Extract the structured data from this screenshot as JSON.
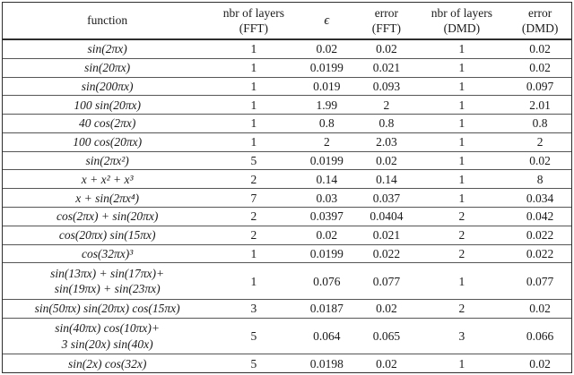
{
  "table": {
    "headers": [
      {
        "line1": "function",
        "line2": ""
      },
      {
        "line1": "nbr of layers",
        "line2": "(FFT)"
      },
      {
        "line1": "ϵ",
        "line2": ""
      },
      {
        "line1": "error",
        "line2": "(FFT)"
      },
      {
        "line1": "nbr of layers",
        "line2": "(DMD)"
      },
      {
        "line1": "error",
        "line2": "(DMD)"
      }
    ],
    "rows": [
      {
        "function": "sin(2πx)",
        "layers_fft": "1",
        "epsilon": "0.02",
        "error_fft": "0.02",
        "layers_dmd": "1",
        "error_dmd": "0.02"
      },
      {
        "function": "sin(20πx)",
        "layers_fft": "1",
        "epsilon": "0.0199",
        "error_fft": "0.021",
        "layers_dmd": "1",
        "error_dmd": "0.02"
      },
      {
        "function": "sin(200πx)",
        "layers_fft": "1",
        "epsilon": "0.019",
        "error_fft": "0.093",
        "layers_dmd": "1",
        "error_dmd": "0.097"
      },
      {
        "function": "100 sin(20πx)",
        "layers_fft": "1",
        "epsilon": "1.99",
        "error_fft": "2",
        "layers_dmd": "1",
        "error_dmd": "2.01"
      },
      {
        "function": "40 cos(2πx)",
        "layers_fft": "1",
        "epsilon": "0.8",
        "error_fft": "0.8",
        "layers_dmd": "1",
        "error_dmd": "0.8"
      },
      {
        "function": "100 cos(20πx)",
        "layers_fft": "1",
        "epsilon": "2",
        "error_fft": "2.03",
        "layers_dmd": "1",
        "error_dmd": "2"
      },
      {
        "function": "sin(2πx²)",
        "layers_fft": "5",
        "epsilon": "0.0199",
        "error_fft": "0.02",
        "layers_dmd": "1",
        "error_dmd": "0.02"
      },
      {
        "function": "x + x² + x³",
        "layers_fft": "2",
        "epsilon": "0.14",
        "error_fft": "0.14",
        "layers_dmd": "1",
        "error_dmd": "8"
      },
      {
        "function": "x + sin(2πx⁴)",
        "layers_fft": "7",
        "epsilon": "0.03",
        "error_fft": "0.037",
        "layers_dmd": "1",
        "error_dmd": "0.034"
      },
      {
        "function": "cos(2πx) + sin(20πx)",
        "layers_fft": "2",
        "epsilon": "0.0397",
        "error_fft": "0.0404",
        "layers_dmd": "2",
        "error_dmd": "0.042"
      },
      {
        "function": "cos(20πx) sin(15πx)",
        "layers_fft": "2",
        "epsilon": "0.02",
        "error_fft": "0.021",
        "layers_dmd": "2",
        "error_dmd": "0.022"
      },
      {
        "function": "cos(32πx)³",
        "layers_fft": "1",
        "epsilon": "0.0199",
        "error_fft": "0.022",
        "layers_dmd": "2",
        "error_dmd": "0.022"
      },
      {
        "function": "sin(13πx) + sin(17πx)+\nsin(19πx) + sin(23πx)",
        "layers_fft": "1",
        "epsilon": "0.076",
        "error_fft": "0.077",
        "layers_dmd": "1",
        "error_dmd": "0.077"
      },
      {
        "function": "sin(50πx) sin(20πx) cos(15πx)",
        "layers_fft": "3",
        "epsilon": "0.0187",
        "error_fft": "0.02",
        "layers_dmd": "2",
        "error_dmd": "0.02"
      },
      {
        "function": "sin(40πx) cos(10πx)+\n3 sin(20x) sin(40x)",
        "layers_fft": "5",
        "epsilon": "0.064",
        "error_fft": "0.065",
        "layers_dmd": "3",
        "error_dmd": "0.066"
      },
      {
        "function": "sin(2x) cos(32x)",
        "layers_fft": "5",
        "epsilon": "0.0198",
        "error_fft": "0.02",
        "layers_dmd": "1",
        "error_dmd": "0.02"
      }
    ]
  }
}
